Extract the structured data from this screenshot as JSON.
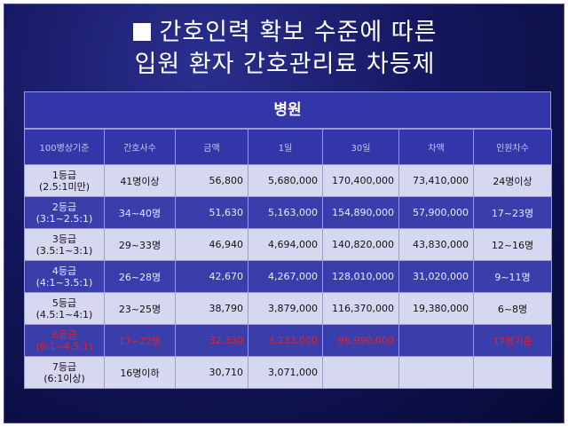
{
  "title": {
    "line1": "간호인력 확보 수준에 따른",
    "line2": "입원 환자 간호관리료 차등제"
  },
  "table": {
    "group_header": "병원",
    "columns": [
      "100병상기준",
      "간호사수",
      "금액",
      "1일",
      "30일",
      "차액",
      "인원차수"
    ],
    "rows": [
      {
        "grade": "1등급",
        "ratio": "(2.5:1미만)",
        "nurses": "41명이상",
        "amount": "56,800",
        "daily": "5,680,000",
        "monthly": "170,400,000",
        "diff": "73,410,000",
        "staff_diff": "24명이상",
        "band": "a",
        "highlight": false
      },
      {
        "grade": "2등급",
        "ratio": "(3:1~2.5:1)",
        "nurses": "34~40명",
        "amount": "51,630",
        "daily": "5,163,000",
        "monthly": "154,890,000",
        "diff": "57,900,000",
        "staff_diff": "17~23명",
        "band": "b",
        "highlight": false
      },
      {
        "grade": "3등급",
        "ratio": "(3.5:1~3:1)",
        "nurses": "29~33명",
        "amount": "46,940",
        "daily": "4,694,000",
        "monthly": "140,820,000",
        "diff": "43,830,000",
        "staff_diff": "12~16명",
        "band": "a",
        "highlight": false
      },
      {
        "grade": "4등급",
        "ratio": "(4:1~3.5:1)",
        "nurses": "26~28명",
        "amount": "42,670",
        "daily": "4,267,000",
        "monthly": "128,010,000",
        "diff": "31,020,000",
        "staff_diff": "9~11명",
        "band": "b",
        "highlight": false
      },
      {
        "grade": "5등급",
        "ratio": "(4.5:1~4:1)",
        "nurses": "23~25명",
        "amount": "38,790",
        "daily": "3,879,000",
        "monthly": "116,370,000",
        "diff": "19,380,000",
        "staff_diff": "6~8명",
        "band": "a",
        "highlight": false
      },
      {
        "grade": "6등급",
        "ratio": "(6:1~4.5:1)",
        "nurses": "17~22명",
        "amount": "32,330",
        "daily": "3,233,000",
        "monthly": "96,990,000",
        "diff": "",
        "staff_diff": "17명기준",
        "band": "b",
        "highlight": true
      },
      {
        "grade": "7등급",
        "ratio": "(6:1이상)",
        "nurses": "16명이하",
        "amount": "30,710",
        "daily": "3,071,000",
        "monthly": "",
        "diff": "",
        "staff_diff": "",
        "band": "a",
        "highlight": false
      }
    ]
  },
  "colors": {
    "background": "#14175e",
    "header_band": "#3236a8",
    "light_band": "#d6d8f2",
    "dark_band": "#3a3eaa",
    "highlight_text": "#e8202a"
  }
}
